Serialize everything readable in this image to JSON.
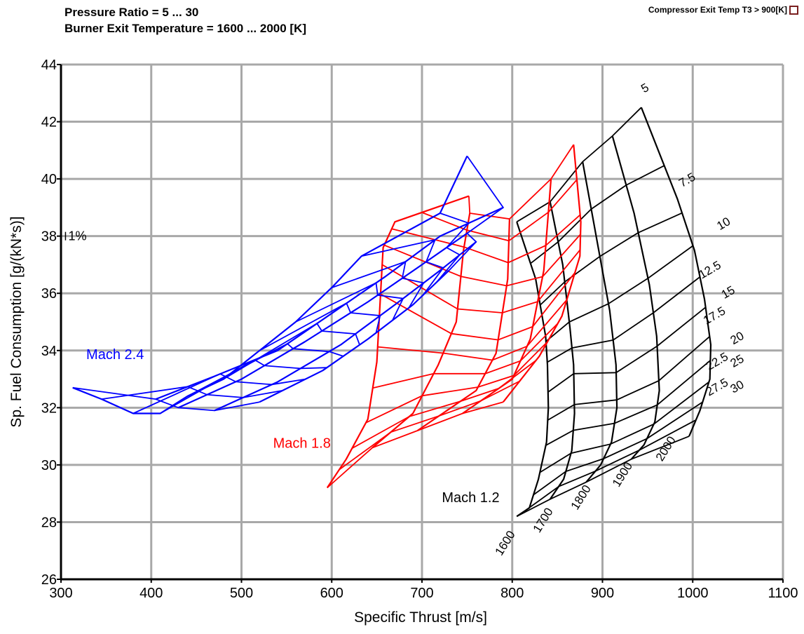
{
  "header": {
    "line1": "Pressure Ratio = 5 ... 30",
    "line2": "Burner Exit Temperature = 1600 ... 2000 [K]"
  },
  "legend": {
    "label": "Compressor Exit Temp T3 > 900[K]",
    "marker_color": "#7a1f1f"
  },
  "chart_data": {
    "type": "line",
    "title": "",
    "xlabel": "Specific Thrust [m/s]",
    "ylabel": "Sp. Fuel Consumption [g/(kN*s)]",
    "xlim": [
      300,
      1100
    ],
    "ylim": [
      26,
      44
    ],
    "xticks": [
      300,
      400,
      500,
      600,
      700,
      800,
      900,
      1000,
      1100
    ],
    "yticks": [
      26,
      28,
      30,
      32,
      34,
      36,
      38,
      40,
      42,
      44
    ],
    "grid": true,
    "scale_marker": {
      "label": "1%",
      "x": 305,
      "y": 38
    },
    "pressure_ratios": [
      "5",
      "7.5",
      "10",
      "12.5",
      "15",
      "17.5",
      "20",
      "22.5",
      "25",
      "27.5",
      "30"
    ],
    "burner_temps": [
      "1600",
      "1700",
      "1800",
      "1900",
      "2000"
    ],
    "carpets": [
      {
        "name": "Mach 1.2",
        "color": "#000000",
        "label": {
          "text": "Mach 1.2",
          "x": 722,
          "y": 28.7
        },
        "curves": [
          {
            "T": "1600",
            "points": [
              [
                805,
                38.5
              ],
              [
                826,
                36.5
              ],
              [
                837,
                34.5
              ],
              [
                839,
                33.5
              ],
              [
                840,
                32.0
              ],
              [
                838,
                30.8
              ],
              [
                829,
                29.5
              ],
              [
                819,
                28.5
              ],
              [
                805,
                28.2
              ]
            ]
          },
          {
            "T": "1700",
            "points": [
              [
                842,
                39.2
              ],
              [
                856,
                37.0
              ],
              [
                864,
                34.8
              ],
              [
                868,
                33.5
              ],
              [
                869,
                31.8
              ],
              [
                866,
                30.5
              ],
              [
                857,
                29.5
              ],
              [
                842,
                28.8
              ]
            ]
          },
          {
            "T": "1800",
            "points": [
              [
                878,
                40.6
              ],
              [
                893,
                38.0
              ],
              [
                908,
                35.4
              ],
              [
                915,
                33.5
              ],
              [
                916,
                32.0
              ],
              [
                910,
                30.8
              ],
              [
                898,
                30.0
              ],
              [
                882,
                29.4
              ]
            ]
          },
          {
            "T": "1900",
            "points": [
              [
                911,
                41.5
              ],
              [
                935,
                38.8
              ],
              [
                952,
                36.3
              ],
              [
                960,
                34.5
              ],
              [
                963,
                32.6
              ],
              [
                958,
                31.5
              ],
              [
                946,
                30.7
              ],
              [
                932,
                30.2
              ]
            ]
          },
          {
            "T": "2000",
            "points": [
              [
                943,
                42.5
              ],
              [
                983,
                39.3
              ],
              [
                1002,
                37.5
              ],
              [
                1013,
                35.8
              ],
              [
                1020,
                34.2
              ],
              [
                1019,
                33.0
              ],
              [
                1008,
                31.9
              ],
              [
                996,
                31.0
              ]
            ]
          }
        ],
        "pr_labels": [
          {
            "text": "5",
            "x": 946,
            "y": 43.0
          },
          {
            "text": "7.5",
            "x": 988,
            "y": 39.7
          },
          {
            "text": "10",
            "x": 1030,
            "y": 38.2
          },
          {
            "text": "12.5",
            "x": 1010,
            "y": 36.5
          },
          {
            "text": "15",
            "x": 1035,
            "y": 35.8
          },
          {
            "text": "17.5",
            "x": 1015,
            "y": 34.9
          },
          {
            "text": "20",
            "x": 1045,
            "y": 34.2
          },
          {
            "text": "22.5",
            "x": 1018,
            "y": 33.3
          },
          {
            "text": "25",
            "x": 1045,
            "y": 33.4
          },
          {
            "text": "27.5",
            "x": 1018,
            "y": 32.4
          },
          {
            "text": "30",
            "x": 1045,
            "y": 32.5
          }
        ],
        "t_labels": [
          {
            "text": "1600",
            "x": 788,
            "y": 26.8
          },
          {
            "text": "1700",
            "x": 830,
            "y": 27.6
          },
          {
            "text": "1800",
            "x": 872,
            "y": 28.4
          },
          {
            "text": "1900",
            "x": 918,
            "y": 29.2
          },
          {
            "text": "2000",
            "x": 966,
            "y": 30.1
          }
        ]
      },
      {
        "name": "Mach 1.8",
        "color": "#ff0000",
        "label": {
          "text": "Mach 1.8",
          "x": 535,
          "y": 30.6
        },
        "curves": [
          {
            "T": "1600",
            "points": [
              [
                595,
                29.2
              ],
              [
                616,
                30.2
              ],
              [
                640,
                31.6
              ],
              [
                650,
                33.6
              ],
              [
                655,
                36.5
              ],
              [
                657,
                37.6
              ],
              [
                670,
                38.5
              ],
              [
                752,
                39.4
              ]
            ]
          },
          {
            "T": "1700",
            "points": [
              [
                645,
                30.6
              ],
              [
                690,
                31.8
              ],
              [
                718,
                33.5
              ],
              [
                738,
                35.0
              ],
              [
                746,
                37.5
              ],
              [
                753,
                38.8
              ]
            ]
          },
          {
            "T": "1800",
            "points": [
              [
                695,
                31.2
              ],
              [
                760,
                32.6
              ],
              [
                782,
                33.9
              ],
              [
                795,
                36.5
              ],
              [
                797,
                38.6
              ]
            ]
          },
          {
            "T": "1900",
            "points": [
              [
                745,
                31.8
              ],
              [
                800,
                33.0
              ],
              [
                820,
                34.4
              ],
              [
                835,
                36.8
              ],
              [
                843,
                40.0
              ]
            ]
          },
          {
            "T": "2000",
            "points": [
              [
                790,
                32.2
              ],
              [
                830,
                33.8
              ],
              [
                855,
                35.2
              ],
              [
                875,
                37.3
              ],
              [
                876,
                38.5
              ],
              [
                868,
                41.2
              ]
            ]
          }
        ],
        "pr_labels": [],
        "t_labels": []
      },
      {
        "name": "Mach 2.4",
        "color": "#0000ff",
        "label": {
          "text": "Mach 2.4",
          "x": 328,
          "y": 33.7
        },
        "curves": [
          {
            "T": "1600",
            "points": [
              [
                313,
                32.7
              ],
              [
                345,
                32.3
              ],
              [
                380,
                31.8
              ],
              [
                410,
                31.8
              ],
              [
                440,
                32.4
              ],
              [
                480,
                33.0
              ],
              [
                520,
                34.0
              ],
              [
                560,
                35.0
              ],
              [
                600,
                36.2
              ],
              [
                633,
                37.3
              ],
              [
                720,
                38.8
              ],
              [
                750,
                40.8
              ]
            ]
          },
          {
            "T": "1700",
            "points": [
              [
                405,
                32.3
              ],
              [
                470,
                33.1
              ],
              [
                540,
                34.0
              ],
              [
                600,
                35.3
              ],
              [
                660,
                36.6
              ],
              [
                720,
                38.0
              ],
              [
                790,
                39.0
              ]
            ]
          },
          {
            "T": "1800",
            "points": [
              [
                430,
                32.0
              ],
              [
                500,
                33.0
              ],
              [
                570,
                34.3
              ],
              [
                640,
                35.7
              ],
              [
                700,
                37.0
              ],
              [
                750,
                38.1
              ]
            ]
          },
          {
            "T": "1900",
            "points": [
              [
                470,
                31.9
              ],
              [
                540,
                32.9
              ],
              [
                610,
                34.2
              ],
              [
                670,
                35.6
              ],
              [
                720,
                36.8
              ],
              [
                760,
                37.8
              ]
            ]
          },
          {
            "T": "2000",
            "points": [
              [
                520,
                32.2
              ],
              [
                590,
                33.3
              ],
              [
                640,
                34.4
              ],
              [
                690,
                35.6
              ],
              [
                730,
                36.8
              ]
            ]
          }
        ],
        "pr_labels": [],
        "t_labels": []
      }
    ]
  }
}
